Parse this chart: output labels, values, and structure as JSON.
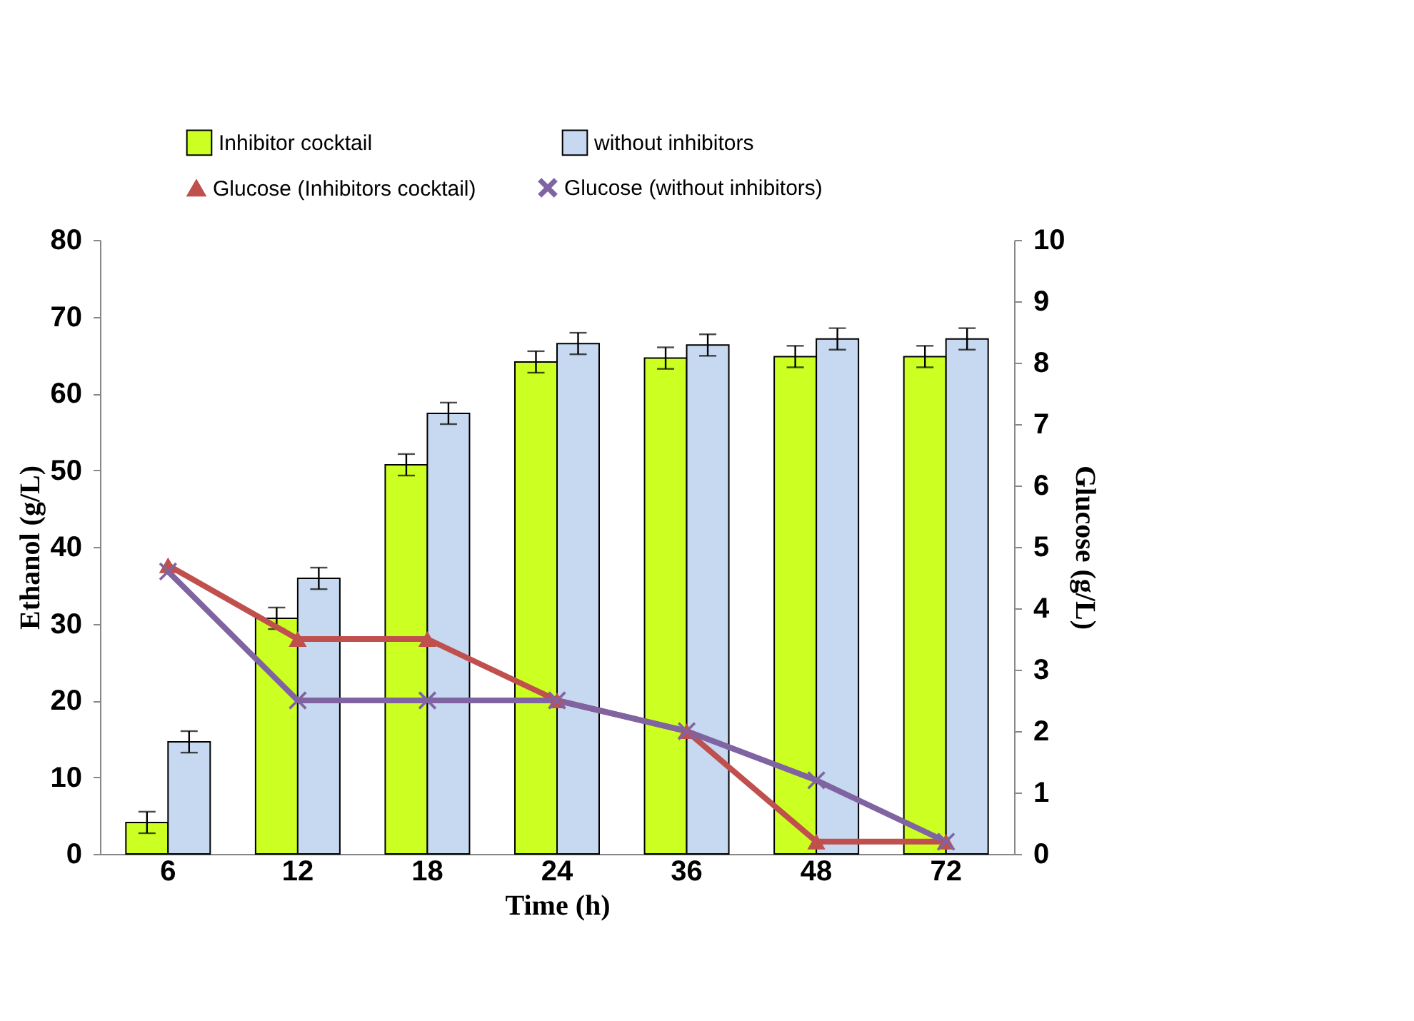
{
  "chart_data": {
    "type": "bar",
    "xlabel": "Time (h)",
    "ylabel": "Ethanol (g/L)",
    "y2label": "Glucose (g/L)",
    "categories": [
      "6",
      "12",
      "18",
      "24",
      "36",
      "48",
      "72"
    ],
    "series": [
      {
        "name": "Inhibitor cocktail",
        "color": "#ccff22",
        "values": [
          4.1,
          30.7,
          50.7,
          64.1,
          64.6,
          64.8,
          64.8
        ],
        "errors": [
          1.4,
          1.4,
          1.4,
          1.4,
          1.4,
          1.4,
          1.4
        ]
      },
      {
        "name": "without inhibitors",
        "color": "#c6d9f0",
        "values": [
          14.6,
          35.9,
          57.4,
          66.5,
          66.3,
          67.1,
          67.1
        ],
        "errors": [
          1.4,
          1.4,
          1.4,
          1.4,
          1.4,
          1.4,
          1.4
        ]
      },
      {
        "name": "Glucose (Inhibitors cocktail)",
        "type": "line",
        "axis": "y2",
        "color": "#c0504d",
        "marker": "triangle",
        "values": [
          4.7,
          3.5,
          3.5,
          2.5,
          2.0,
          0.2,
          0.2
        ]
      },
      {
        "name": "Glucose (without inhibitors)",
        "type": "line",
        "axis": "y2",
        "color": "#8064a2",
        "marker": "cross",
        "values": [
          4.6,
          2.5,
          2.5,
          2.5,
          2.0,
          1.2,
          0.2
        ]
      }
    ],
    "ylim": [
      0,
      80
    ],
    "yticks": [
      0,
      10,
      20,
      30,
      40,
      50,
      60,
      70,
      80
    ],
    "y2lim": [
      0,
      10
    ],
    "y2ticks": [
      0,
      1,
      2,
      3,
      4,
      5,
      6,
      7,
      8,
      9,
      10
    ],
    "grid": false,
    "legend": "top"
  }
}
